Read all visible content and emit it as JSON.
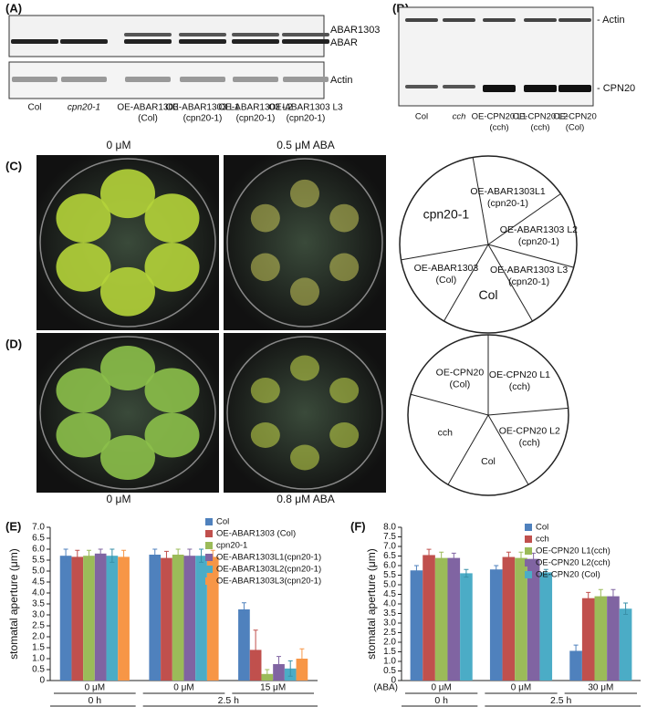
{
  "panels": {
    "A": {
      "label": "(A)",
      "right_labels": [
        "ABAR1303",
        "ABAR",
        "Actin"
      ],
      "lanes": [
        [
          "Col"
        ],
        [
          "cpn20-1"
        ],
        [
          "OE-ABAR1303",
          "(Col)"
        ],
        [
          "OE-ABAR1303 L1",
          "(cpn20-1)"
        ],
        [
          "OE-ABAR1303 L2",
          "(cpn20-1)"
        ],
        [
          "OE-ABAR1303 L3",
          "(cpn20-1)"
        ]
      ]
    },
    "B": {
      "label": "(B)",
      "right_labels": [
        "- Actin",
        "- CPN20"
      ],
      "lanes": [
        [
          "Col"
        ],
        [
          "cch"
        ],
        [
          "OE-CPN20 L1",
          "(cch)"
        ],
        [
          "OE-CPN20 L2",
          "(cch)"
        ],
        [
          "OE-CPN20",
          "(Col)"
        ]
      ]
    },
    "C": {
      "label": "(C)",
      "conditions": [
        "0 μM",
        "0.5 μM ABA"
      ],
      "sectors": [
        [
          "OE-ABAR1303L1",
          "(cpn20-1)"
        ],
        [
          "OE-ABAR1303 L2",
          "(cpn20-1)"
        ],
        [
          "OE-ABAR1303 L3",
          "(cpn20-1)"
        ],
        [
          "Col"
        ],
        [
          "OE-ABAR1303",
          "(Col)"
        ],
        [
          "cpn20-1"
        ]
      ]
    },
    "D": {
      "label": "(D)",
      "conditions": [
        "0 μM",
        "0.8 μM ABA"
      ],
      "sectors": [
        [
          "OE-CPN20 L1",
          "(cch)"
        ],
        [
          "OE-CPN20 L2",
          "(cch)"
        ],
        [
          "Col"
        ],
        [
          "cch"
        ],
        [
          "OE-CPN20",
          "(Col)"
        ]
      ]
    }
  },
  "chart_data": [
    {
      "type": "bar",
      "panel_label": "(E)",
      "y_label": "stomatal aperture (μm)",
      "categories": [
        "0 μM",
        "0 μM",
        "15 μM"
      ],
      "time_labels": [
        "0 h",
        "2.5 h"
      ],
      "ylim": [
        0,
        7
      ],
      "yticks": [
        0,
        0.5,
        {
          "value": 1,
          "label": "1.0"
        },
        1.5,
        {
          "value": 2,
          "label": "2.0"
        },
        2.5,
        {
          "value": 3,
          "label": "3.0"
        },
        3.5,
        {
          "value": 4,
          "label": "4.0"
        },
        4.5,
        {
          "value": 5,
          "label": "5.0"
        },
        5.5,
        {
          "value": 6,
          "label": "6.0"
        },
        6.5,
        {
          "value": 7,
          "label": "7.0"
        }
      ],
      "series": [
        {
          "name": "Col",
          "color": "#4f81bd",
          "values": [
            5.7,
            5.75,
            3.25
          ],
          "errors": [
            0.3,
            0.25,
            0.3
          ]
        },
        {
          "name": "OE-ABAR1303 (Col)",
          "color": "#c0504d",
          "values": [
            5.65,
            5.6,
            1.4
          ],
          "errors": [
            0.3,
            0.3,
            0.9
          ]
        },
        {
          "name": "cpn20-1",
          "color": "#9bbb59",
          "values": [
            5.7,
            5.75,
            0.3
          ],
          "errors": [
            0.25,
            0.25,
            0.2
          ]
        },
        {
          "name": "OE-ABAR1303L1(cpn20-1)",
          "color": "#8064a2",
          "values": [
            5.8,
            5.7,
            0.75
          ],
          "errors": [
            0.2,
            0.3,
            0.35
          ]
        },
        {
          "name": "OE-ABAR1303L2(cpn20-1)",
          "color": "#4bacc6",
          "values": [
            5.7,
            5.7,
            0.55
          ],
          "errors": [
            0.3,
            0.3,
            0.35
          ]
        },
        {
          "name": "OE-ABAR1303L3(cpn20-1)",
          "color": "#f79646",
          "values": [
            5.65,
            5.65,
            1.0
          ],
          "errors": [
            0.3,
            0.3,
            0.45
          ]
        }
      ]
    },
    {
      "type": "bar",
      "panel_label": "(F)",
      "y_label": "stomatal aperture (μm)",
      "axis_note": "(ABA)",
      "categories": [
        "0 μM",
        "0 μM",
        "30 μM"
      ],
      "time_labels": [
        "0 h",
        "2.5 h"
      ],
      "ylim": [
        0,
        8
      ],
      "yticks": [
        0,
        0.5,
        {
          "value": 1,
          "label": "1.0"
        },
        1.5,
        {
          "value": 2,
          "label": "2.0"
        },
        2.5,
        {
          "value": 3,
          "label": "3.0"
        },
        3.5,
        {
          "value": 4,
          "label": "4.0"
        },
        4.5,
        {
          "value": 5,
          "label": "5.0"
        },
        5.5,
        {
          "value": 6,
          "label": "6.0"
        },
        6.5,
        {
          "value": 7,
          "label": "7.0"
        },
        7.5,
        {
          "value": 8,
          "label": "8.0"
        }
      ],
      "series": [
        {
          "name": "Col",
          "color": "#4f81bd",
          "values": [
            5.75,
            5.8,
            1.55
          ],
          "errors": [
            0.25,
            0.2,
            0.3
          ]
        },
        {
          "name": "cch",
          "color": "#c0504d",
          "values": [
            6.55,
            6.45,
            4.3
          ],
          "errors": [
            0.3,
            0.25,
            0.3
          ]
        },
        {
          "name": "OE-CPN20 L1(cch)",
          "color": "#9bbb59",
          "values": [
            6.4,
            6.4,
            4.4
          ],
          "errors": [
            0.3,
            0.3,
            0.35
          ]
        },
        {
          "name": "OE-CPN20 L2(cch)",
          "color": "#8064a2",
          "values": [
            6.4,
            6.35,
            4.4
          ],
          "errors": [
            0.25,
            0.3,
            0.35
          ]
        },
        {
          "name": "OE-CPN20 (Col)",
          "color": "#4bacc6",
          "values": [
            5.6,
            5.65,
            3.75
          ],
          "errors": [
            0.2,
            0.15,
            0.3
          ]
        }
      ]
    }
  ]
}
